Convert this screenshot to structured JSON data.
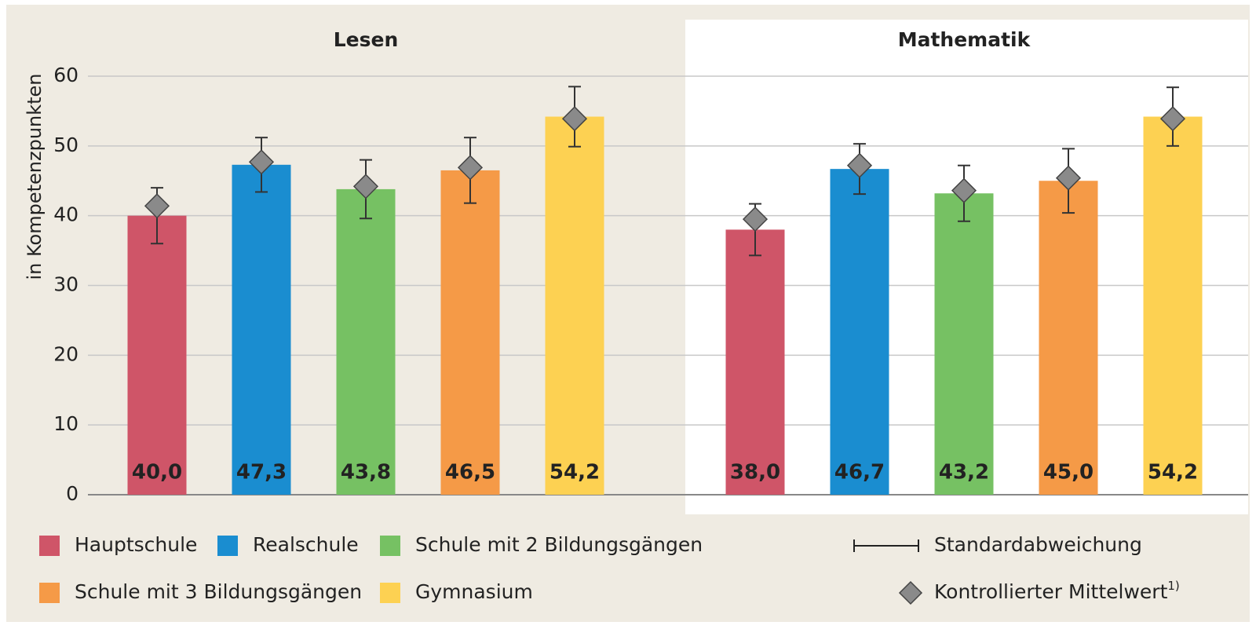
{
  "chart_data": {
    "type": "bar",
    "categories": [
      "Lesen",
      "Mathematik"
    ],
    "ylabel": "in Kompetenzpunkten",
    "ylim": [
      0,
      60
    ],
    "yticks": [
      0,
      10,
      20,
      30,
      40,
      50,
      60
    ],
    "grid": true,
    "series": [
      {
        "name": "Hauptschule",
        "color": "#cf5568",
        "values": [
          40.0,
          38.0
        ],
        "value_labels": [
          "40,0",
          "38,0"
        ],
        "controlled_mean": [
          41.4,
          39.5
        ],
        "sd": [
          4.0,
          3.7
        ]
      },
      {
        "name": "Realschule",
        "color": "#1a8dd0",
        "values": [
          47.3,
          46.7
        ],
        "value_labels": [
          "47,3",
          "46,7"
        ],
        "controlled_mean": [
          47.7,
          47.2
        ],
        "sd": [
          3.9,
          3.6
        ]
      },
      {
        "name": "Schule mit 2 Bildungsgängen",
        "color": "#76c163",
        "values": [
          43.8,
          43.2
        ],
        "value_labels": [
          "43,8",
          "43,2"
        ],
        "controlled_mean": [
          44.2,
          43.6
        ],
        "sd": [
          4.2,
          4.0
        ]
      },
      {
        "name": "Schule mit 3 Bildungsgängen",
        "color": "#f59a47",
        "values": [
          46.5,
          45.0
        ],
        "value_labels": [
          "46,5",
          "45,0"
        ],
        "controlled_mean": [
          46.9,
          45.4
        ],
        "sd": [
          4.7,
          4.6
        ]
      },
      {
        "name": "Gymnasium",
        "color": "#fdd152",
        "values": [
          54.2,
          54.2
        ],
        "value_labels": [
          "54,2",
          "54,2"
        ],
        "controlled_mean": [
          53.9,
          53.9
        ],
        "sd": [
          4.3,
          4.2
        ]
      }
    ],
    "error_label": "Standardabweichung",
    "mean_label": "Kontrollierter Mittelwert",
    "mean_note": "1)"
  }
}
